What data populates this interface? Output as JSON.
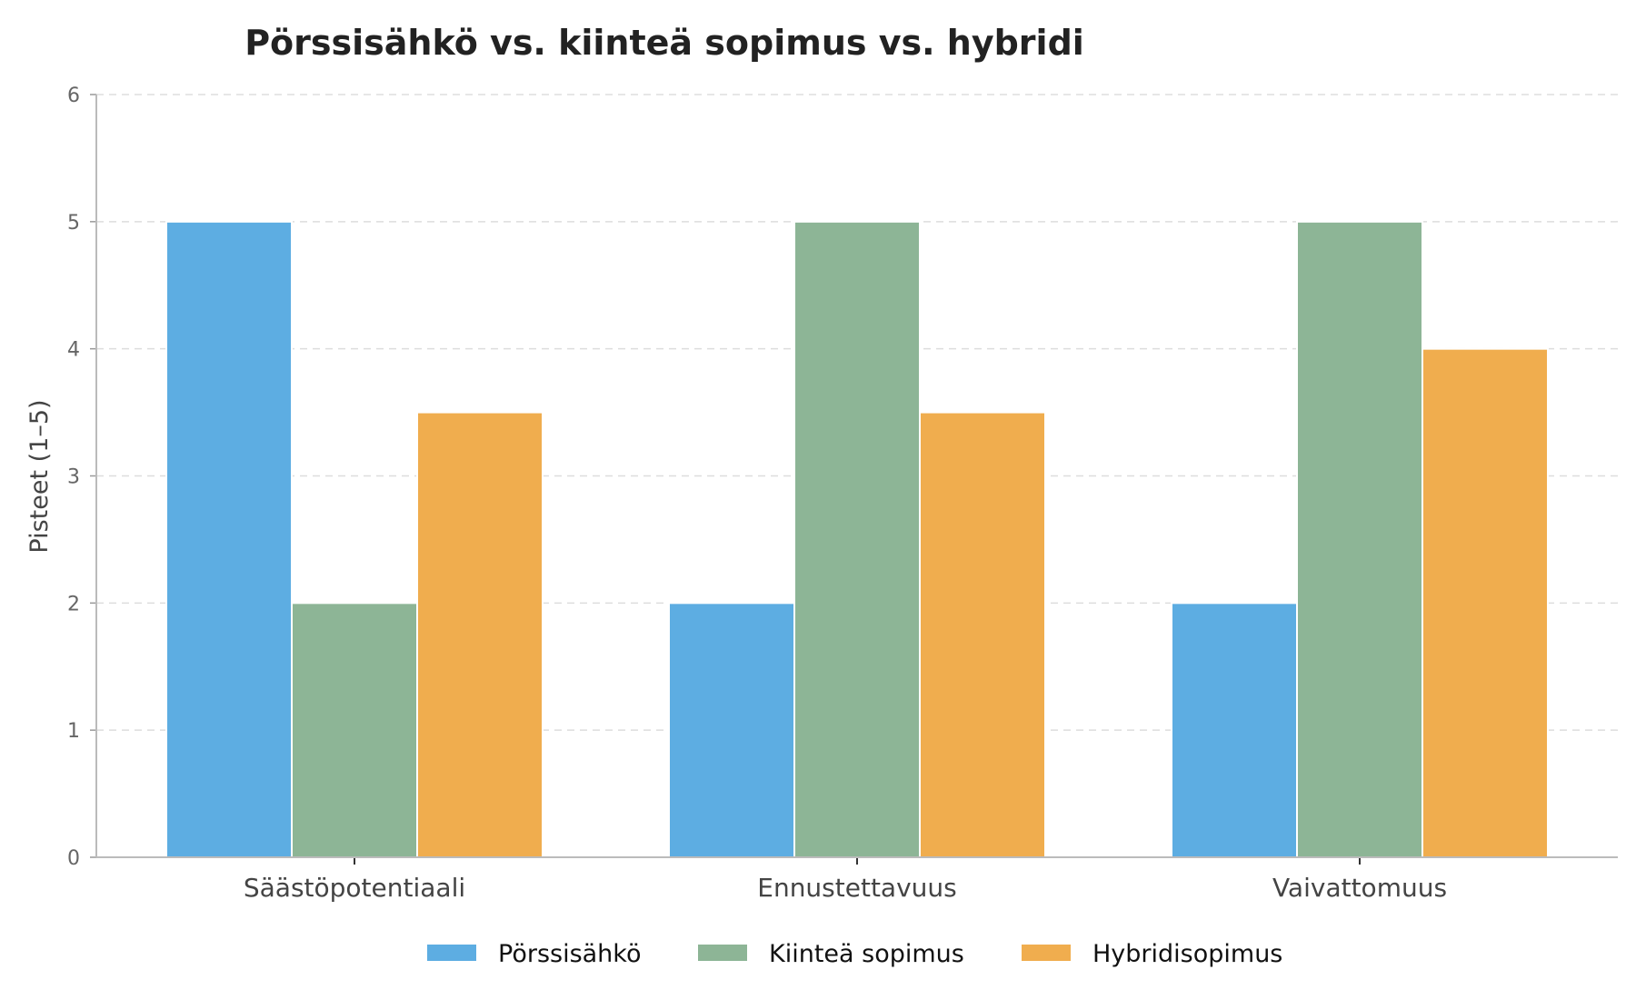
{
  "chart_data": {
    "type": "bar",
    "title": "Pörssisähkö vs. kiinteä sopimus vs. hybridi",
    "xlabel": "",
    "ylabel": "Pisteet (1–5)",
    "ylim": [
      0,
      6
    ],
    "yticks": [
      0,
      1,
      2,
      3,
      4,
      5,
      6
    ],
    "grid": true,
    "legend_position": "bottom-center",
    "categories": [
      "Säästöpotentiaali",
      "Ennustettavuus",
      "Vaivattomuus"
    ],
    "series": [
      {
        "name": "Pörssisähkö",
        "color": "#5DADE2",
        "values": [
          5,
          2,
          2
        ]
      },
      {
        "name": "Kiinteä sopimus",
        "color": "#8DB596",
        "values": [
          2,
          5,
          5
        ]
      },
      {
        "name": "Hybridisopimus",
        "color": "#F0AD4E",
        "values": [
          3.5,
          3.5,
          4
        ]
      }
    ]
  }
}
